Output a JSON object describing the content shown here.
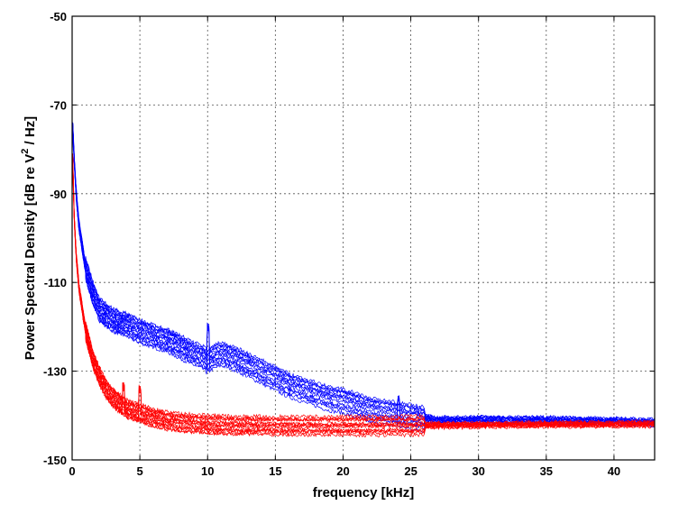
{
  "chart_data": {
    "type": "line",
    "xlabel": "frequency [kHz]",
    "ylabel_parts": {
      "before": "Power Spectral Density [dB re V",
      "sup": "2",
      "after": " / Hz]"
    },
    "xlim": [
      0,
      43
    ],
    "ylim": [
      -150,
      -50
    ],
    "x_ticks": [
      0,
      5,
      10,
      15,
      20,
      25,
      30,
      35,
      40
    ],
    "y_ticks": [
      -150,
      -130,
      -110,
      -90,
      -70,
      -50
    ],
    "grid": true,
    "legend": "none",
    "series_groups": [
      {
        "color": "#0000ff",
        "count": 14,
        "spread_db": 2.5,
        "x": [
          0,
          0.05,
          0.15,
          0.3,
          0.5,
          0.8,
          1,
          1.5,
          2,
          3,
          4,
          5,
          6,
          7,
          8,
          9,
          9.8,
          10,
          10.2,
          11,
          12,
          13,
          14,
          15,
          16,
          17,
          18,
          19,
          20,
          21,
          22,
          23,
          24,
          25,
          26,
          27,
          28,
          29,
          30,
          32,
          35,
          38,
          40,
          43
        ],
        "y": [
          -80,
          -75,
          -82,
          -90,
          -97,
          -103,
          -107,
          -112,
          -116,
          -118.5,
          -119.5,
          -121,
          -122,
          -123,
          -124.5,
          -126,
          -127,
          -128,
          -127,
          -126,
          -127,
          -128.5,
          -130,
          -131.5,
          -133,
          -134,
          -135,
          -136,
          -136.5,
          -137.5,
          -138.5,
          -139,
          -139.5,
          -140,
          -140.5,
          -141,
          -141,
          -141,
          -140.8,
          -141,
          -141,
          -141.2,
          -141.2,
          -141.5
        ],
        "spikes": [
          {
            "x": 10.05,
            "y": -120
          },
          {
            "x": 24.1,
            "y": -136
          }
        ]
      },
      {
        "color": "#ff0000",
        "count": 14,
        "spread_db": 2,
        "x": [
          0,
          0.05,
          0.15,
          0.3,
          0.5,
          0.8,
          1,
          1.5,
          2,
          2.5,
          3,
          4,
          5,
          6,
          7,
          8,
          10,
          12,
          15,
          20,
          25,
          30,
          35,
          43
        ],
        "y": [
          -90,
          -82,
          -95,
          -104,
          -111,
          -117,
          -121,
          -127,
          -131,
          -134,
          -136,
          -138.5,
          -139.5,
          -140.5,
          -141.2,
          -141.6,
          -142,
          -142.2,
          -142.3,
          -142.3,
          -142.2,
          -142.1,
          -142,
          -141.9
        ],
        "spikes": [
          {
            "x": 3.8,
            "y": -133.5
          },
          {
            "x": 5.0,
            "y": -134
          }
        ]
      }
    ]
  }
}
